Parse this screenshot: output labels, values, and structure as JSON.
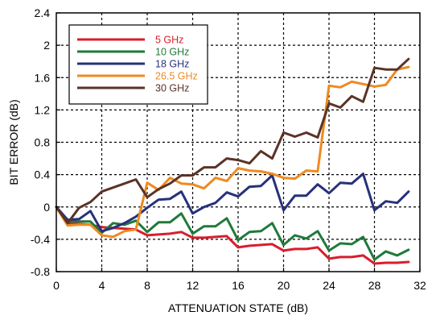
{
  "chart_data": {
    "type": "line",
    "xlabel": "ATTENUATION STATE (dB)",
    "ylabel": "BIT ERROR (dB)",
    "xlim": [
      0,
      32
    ],
    "ylim": [
      -0.8,
      2.4
    ],
    "xticks": [
      0,
      4,
      8,
      12,
      16,
      20,
      24,
      28,
      32
    ],
    "xtick_labels": [
      "0",
      "4",
      "8",
      "12",
      "16",
      "20",
      "24",
      "28",
      "32"
    ],
    "yticks": [
      -0.8,
      -0.4,
      0,
      0.4,
      0.8,
      1.2,
      1.6,
      2,
      2.4
    ],
    "ytick_labels": [
      "-0.8",
      "-0.4",
      "0",
      "0.4",
      "0.8",
      "1.2",
      "1.6",
      "2",
      "2.4"
    ],
    "grid": true,
    "legend_position": "top-left",
    "x": [
      0,
      1,
      2,
      3,
      4,
      5,
      6,
      7,
      8,
      9,
      10,
      11,
      12,
      13,
      14,
      15,
      16,
      17,
      18,
      19,
      20,
      21,
      22,
      23,
      24,
      25,
      26,
      27,
      28,
      29,
      30,
      31
    ],
    "series": [
      {
        "name": "5 GHz",
        "color": "#d81e2c",
        "values": [
          0,
          -0.2,
          -0.21,
          -0.22,
          -0.25,
          -0.26,
          -0.27,
          -0.28,
          -0.35,
          -0.34,
          -0.33,
          -0.31,
          -0.38,
          -0.38,
          -0.37,
          -0.36,
          -0.5,
          -0.48,
          -0.47,
          -0.46,
          -0.54,
          -0.52,
          -0.52,
          -0.5,
          -0.64,
          -0.62,
          -0.62,
          -0.6,
          -0.7,
          -0.69,
          -0.69,
          -0.68
        ]
      },
      {
        "name": "10 GHz",
        "color": "#1f7a3a",
        "values": [
          0,
          -0.18,
          -0.18,
          -0.18,
          -0.32,
          -0.2,
          -0.22,
          -0.17,
          -0.31,
          -0.19,
          -0.19,
          -0.08,
          -0.33,
          -0.24,
          -0.24,
          -0.14,
          -0.41,
          -0.31,
          -0.3,
          -0.2,
          -0.47,
          -0.35,
          -0.39,
          -0.3,
          -0.54,
          -0.45,
          -0.46,
          -0.37,
          -0.65,
          -0.55,
          -0.6,
          -0.53
        ]
      },
      {
        "name": "18 GHz",
        "color": "#27317a",
        "values": [
          0,
          -0.16,
          -0.15,
          -0.05,
          -0.3,
          -0.26,
          -0.2,
          -0.12,
          -0.01,
          0.09,
          0.1,
          0.19,
          -0.08,
          0.0,
          0.05,
          0.18,
          0.13,
          0.25,
          0.26,
          0.39,
          -0.04,
          0.14,
          0.14,
          0.28,
          0.17,
          0.3,
          0.29,
          0.41,
          -0.04,
          0.07,
          0.05,
          0.19
        ]
      },
      {
        "name": "26.5 GHz",
        "color": "#ef8a1f",
        "values": [
          0,
          -0.23,
          -0.22,
          -0.22,
          -0.35,
          -0.37,
          -0.3,
          -0.28,
          0.3,
          0.21,
          0.36,
          0.29,
          0.28,
          0.23,
          0.36,
          0.32,
          0.48,
          0.45,
          0.44,
          0.41,
          0.36,
          0.35,
          0.45,
          0.44,
          1.5,
          1.48,
          1.55,
          1.52,
          1.49,
          1.51,
          1.7,
          1.73
        ]
      },
      {
        "name": "30 GHz",
        "color": "#5a3327",
        "values": [
          0,
          -0.2,
          -0.01,
          0.06,
          0.19,
          0.24,
          0.29,
          0.34,
          0.12,
          0.22,
          0.29,
          0.39,
          0.39,
          0.49,
          0.49,
          0.6,
          0.58,
          0.54,
          0.69,
          0.6,
          0.92,
          0.87,
          0.92,
          0.86,
          1.28,
          1.23,
          1.37,
          1.3,
          1.72,
          1.7,
          1.7,
          1.83
        ]
      }
    ]
  }
}
